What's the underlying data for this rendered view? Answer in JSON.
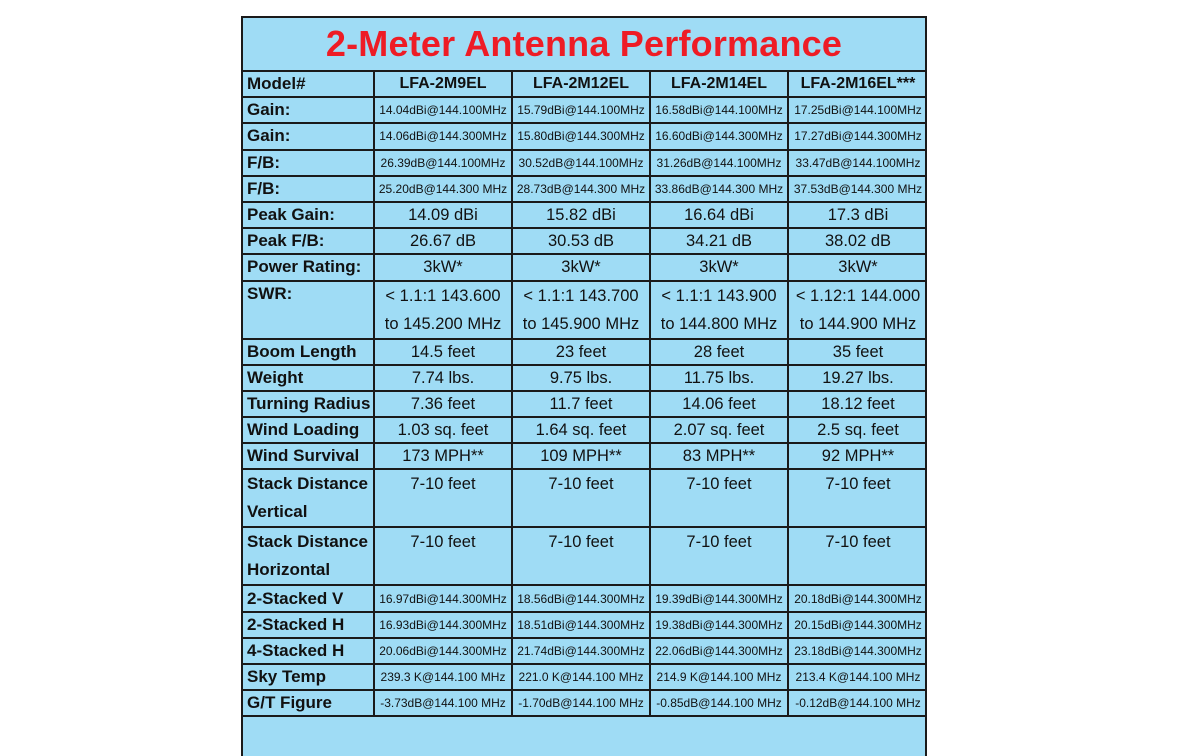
{
  "title": "2-Meter Antenna Performance",
  "columns": [
    "Model#",
    "LFA-2M9EL",
    "LFA-2M12EL",
    "LFA-2M14EL",
    "LFA-2M16EL***"
  ],
  "rows": [
    {
      "label": "Gain:",
      "values": [
        "14.04dBi@144.100MHz",
        "15.79dBi@144.100MHz",
        "16.58dBi@144.100MHz",
        "17.25dBi@144.100MHz"
      ]
    },
    {
      "label": "Gain:",
      "values": [
        "14.06dBi@144.300MHz",
        "15.80dBi@144.300MHz",
        "16.60dBi@144.300MHz",
        "17.27dBi@144.300MHz"
      ]
    },
    {
      "label": "F/B:",
      "values": [
        "26.39dB@144.100MHz",
        "30.52dB@144.100MHz",
        "31.26dB@144.100MHz",
        "33.47dB@144.100MHz"
      ]
    },
    {
      "label": "F/B:",
      "values": [
        "25.20dB@144.300 MHz",
        "28.73dB@144.300 MHz",
        "33.86dB@144.300 MHz",
        "37.53dB@144.300 MHz"
      ]
    },
    {
      "label": "Peak Gain:",
      "values": [
        "14.09 dBi",
        "15.82 dBi",
        "16.64 dBi",
        "17.3 dBi"
      ]
    },
    {
      "label": "Peak F/B:",
      "values": [
        "26.67 dB",
        "30.53 dB",
        "34.21 dB",
        "38.02 dB"
      ]
    },
    {
      "label": "Power Rating:",
      "values": [
        "3kW*",
        "3kW*",
        "3kW*",
        "3kW*"
      ]
    },
    {
      "label": "SWR:",
      "values": [
        [
          "< 1.1:1 143.600",
          "to 145.200 MHz"
        ],
        [
          "< 1.1:1 143.700",
          "to 145.900 MHz"
        ],
        [
          "< 1.1:1 143.900",
          "to 144.800 MHz"
        ],
        [
          "< 1.12:1 144.000",
          "to 144.900 MHz"
        ]
      ]
    },
    {
      "label": "Boom Length",
      "values": [
        "14.5 feet",
        "23 feet",
        "28 feet",
        "35 feet"
      ]
    },
    {
      "label": "Weight",
      "values": [
        "7.74 lbs.",
        "9.75 lbs.",
        "11.75 lbs.",
        "19.27 lbs."
      ]
    },
    {
      "label": "Turning Radius",
      "values": [
        "7.36 feet",
        "11.7 feet",
        "14.06 feet",
        "18.12 feet"
      ]
    },
    {
      "label": "Wind Loading",
      "values": [
        "1.03 sq. feet",
        "1.64 sq. feet",
        "2.07 sq. feet",
        "2.5 sq. feet"
      ]
    },
    {
      "label": "Wind Survival",
      "values": [
        "173 MPH**",
        "109 MPH**",
        "83 MPH**",
        "92 MPH**"
      ]
    },
    {
      "label": [
        "Stack Distance",
        "Vertical"
      ],
      "values": [
        "7-10 feet",
        "7-10 feet",
        "7-10 feet",
        "7-10 feet"
      ]
    },
    {
      "label": [
        "Stack Distance",
        "Horizontal"
      ],
      "values": [
        "7-10 feet",
        "7-10 feet",
        "7-10 feet",
        "7-10 feet"
      ]
    },
    {
      "label": "2-Stacked V",
      "values": [
        "16.97dBi@144.300MHz",
        "18.56dBi@144.300MHz",
        "19.39dBi@144.300MHz",
        "20.18dBi@144.300MHz"
      ]
    },
    {
      "label": "2-Stacked H",
      "values": [
        "16.93dBi@144.300MHz",
        "18.51dBi@144.300MHz",
        "19.38dBi@144.300MHz",
        "20.15dBi@144.300MHz"
      ]
    },
    {
      "label": "4-Stacked H",
      "values": [
        "20.06dBi@144.300MHz",
        "21.74dBi@144.300MHz",
        "22.06dBi@144.300MHz",
        "23.18dBi@144.300MHz"
      ]
    },
    {
      "label": "Sky Temp",
      "values": [
        "239.3 K@144.100 MHz",
        "221.0 K@144.100 MHz",
        "214.9 K@144.100 MHz",
        "213.4 K@144.100 MHz"
      ]
    },
    {
      "label": "G/T Figure",
      "values": [
        "-3.73dB@144.100 MHz",
        "-1.70dB@144.100 MHz",
        "-0.85dB@144.100 MHz",
        "-0.12dB@144.100 MHz"
      ]
    }
  ]
}
